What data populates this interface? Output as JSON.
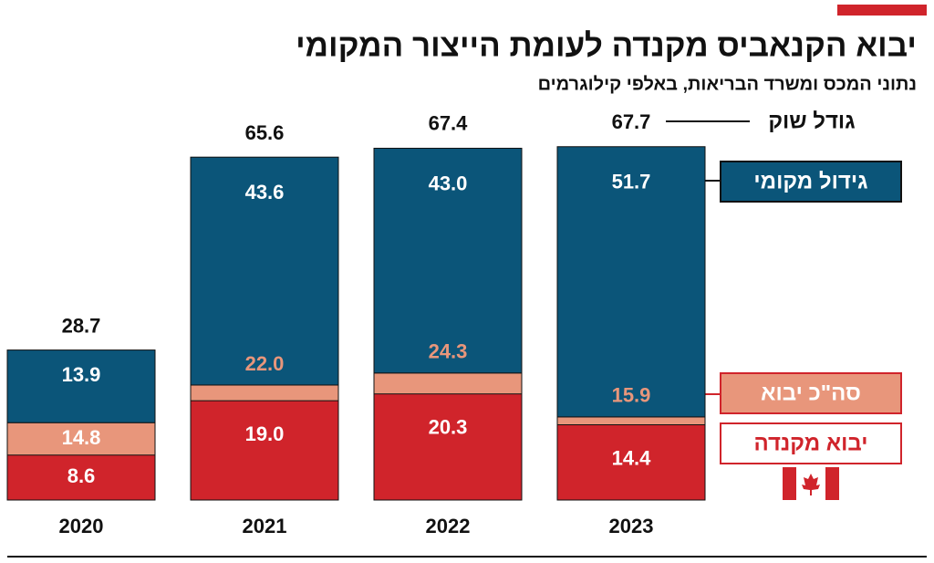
{
  "chart_data": {
    "type": "bar",
    "title": "יבוא הקנאביס מקנדה לעומת הייצור המקומי",
    "subtitle": "נתוני המכס ומשרד הבריאות, באלפי קילוגרמים",
    "categories": [
      "2020",
      "2021",
      "2022",
      "2023"
    ],
    "series": [
      {
        "name": "יבוא מקנדה",
        "color": "#d0242b",
        "values": [
          8.6,
          19.0,
          20.3,
          14.4
        ],
        "value_labels": [
          "8.6",
          "19.0",
          "20.3",
          "14.4"
        ]
      },
      {
        "name": "סה\"כ יבוא",
        "color": "#e8967b",
        "values": [
          14.8,
          22.0,
          24.3,
          15.9
        ],
        "value_labels": [
          "14.8",
          "22.0",
          "24.3",
          "15.9"
        ]
      },
      {
        "name": "גידול מקומי",
        "color": "#0b5579",
        "values": [
          13.9,
          43.6,
          43.0,
          51.7
        ],
        "value_labels": [
          "13.9",
          "43.6",
          "43.0",
          "51.7"
        ]
      }
    ],
    "market_size": {
      "name": "גודל שוק",
      "values": [
        28.7,
        65.6,
        67.4,
        67.7
      ]
    },
    "ylim": [
      0,
      70
    ]
  }
}
